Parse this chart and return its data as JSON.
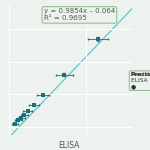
{
  "equation": "y = 0.9854x – 0.064",
  "r2": "R² = 0.9695",
  "xlabel": "ELISA",
  "background_color": "#eef2ee",
  "grid_color": "#ffffff",
  "line_color": "#5bc8d0",
  "dot_color": "#1a6e7a",
  "points": [
    [
      0.04,
      0.02
    ],
    [
      0.06,
      0.04
    ],
    [
      0.08,
      0.055
    ],
    [
      0.1,
      0.075
    ],
    [
      0.12,
      0.095
    ],
    [
      0.16,
      0.135
    ],
    [
      0.22,
      0.195
    ],
    [
      0.36,
      0.32
    ],
    [
      0.58,
      0.54
    ]
  ],
  "xerr": [
    0.02,
    0.022,
    0.025,
    0.025,
    0.03,
    0.032,
    0.04,
    0.055,
    0.065
  ],
  "yerr": [
    0.004,
    0.004,
    0.005,
    0.005,
    0.005,
    0.006,
    0.007,
    0.009,
    0.011
  ],
  "xlim": [
    -0.02,
    0.8
  ],
  "ylim": [
    -0.05,
    0.75
  ],
  "box_bg": "#eef2ee",
  "box_border": "#88b888",
  "legend_bg": "#eef2ee",
  "legend_border": "#88b888",
  "eq_fontsize": 5.0,
  "label_fontsize": 5.5,
  "tick_fontsize": 4.0
}
